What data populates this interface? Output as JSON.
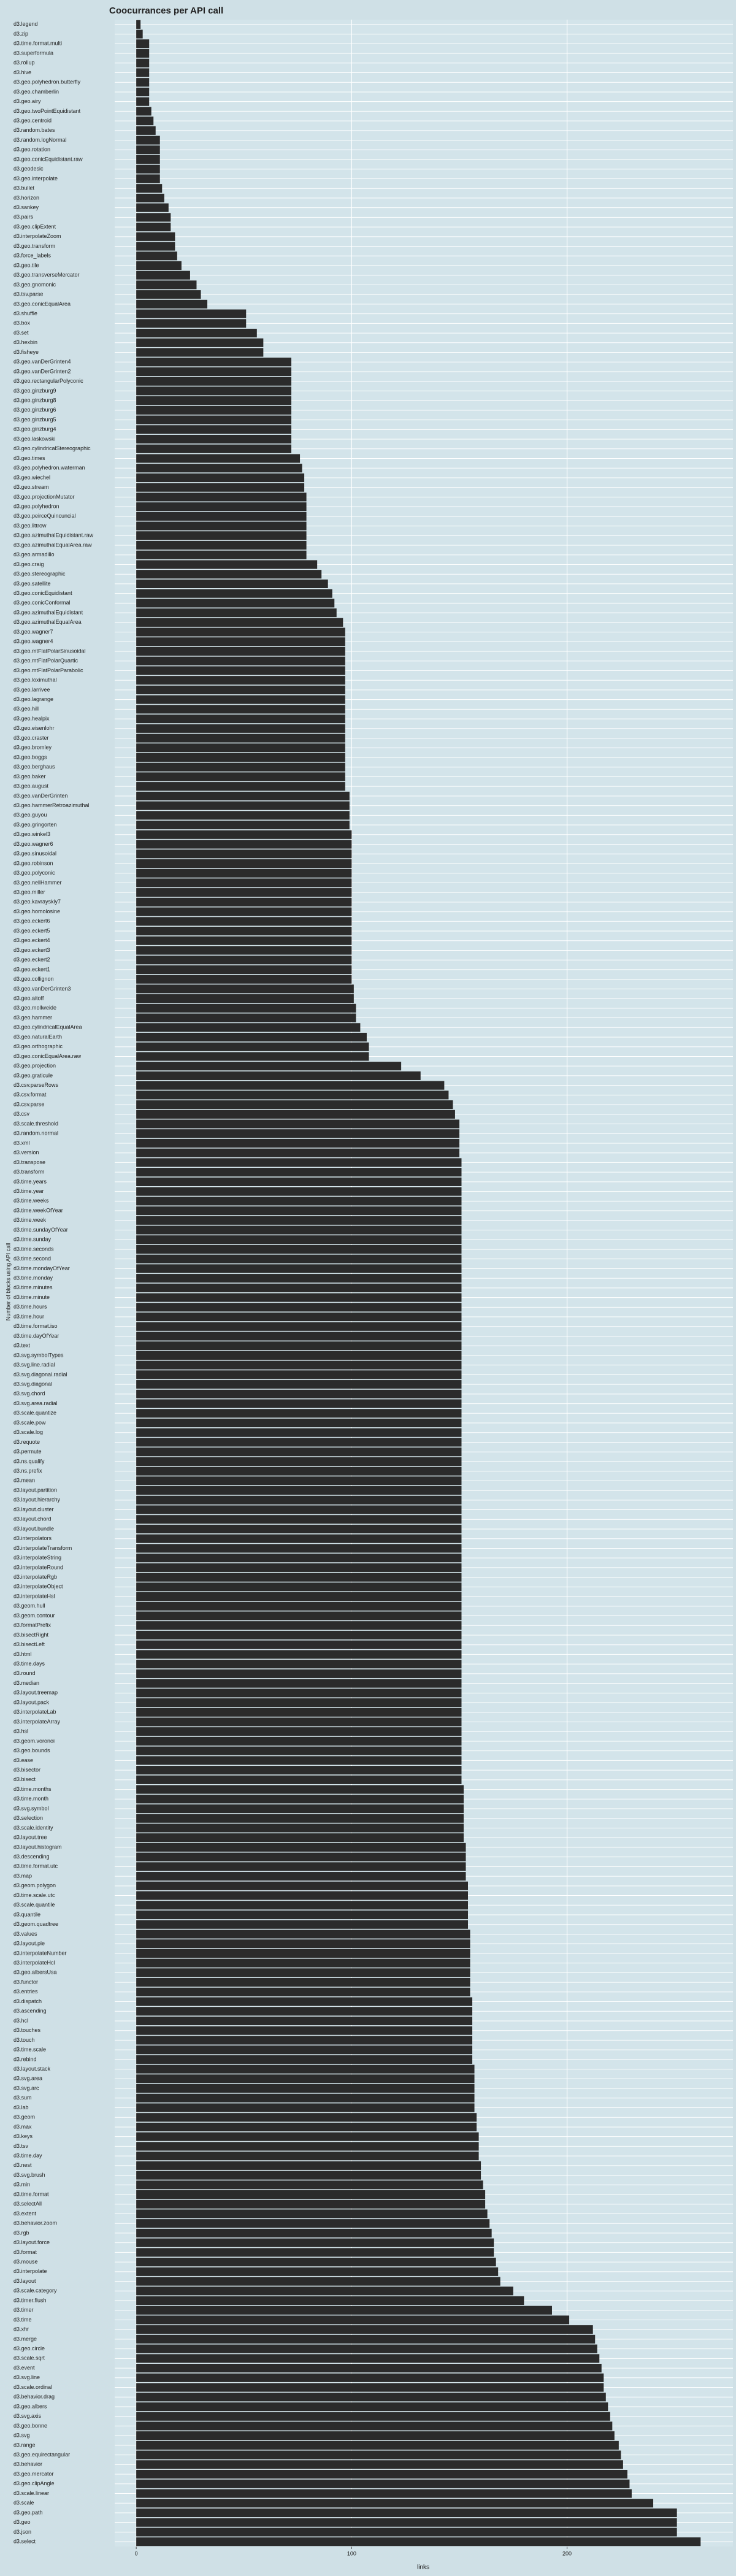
{
  "chart_data": {
    "type": "barh",
    "title": "Coocurrances per API call",
    "xlabel": "links",
    "ylabel": "Number of blocks using API call",
    "color": "#2b2b2b",
    "grid": true,
    "xlim": [
      -10,
      277
    ],
    "xticks": [
      0,
      100,
      200
    ],
    "categories": [
      "d3.legend",
      "d3.zip",
      "d3.time.format.multi",
      "d3.superformula",
      "d3.rollup",
      "d3.hive",
      "d3.geo.polyhedron.butterfly",
      "d3.geo.chamberlin",
      "d3.geo.airy",
      "d3.geo.twoPointEquidistant",
      "d3.geo.centroid",
      "d3.random.bates",
      "d3.random.logNormal",
      "d3.geo.rotation",
      "d3.geo.conicEquidistant.raw",
      "d3.geodesic",
      "d3.geo.interpolate",
      "d3.bullet",
      "d3.horizon",
      "d3.sankey",
      "d3.pairs",
      "d3.geo.clipExtent",
      "d3.interpolateZoom",
      "d3.geo.transform",
      "d3.force_labels",
      "d3.geo.tile",
      "d3.geo.transverseMercator",
      "d3.geo.gnomonic",
      "d3.tsv.parse",
      "d3.geo.conicEqualArea",
      "d3.shuffle",
      "d3.box",
      "d3.set",
      "d3.hexbin",
      "d3.fisheye",
      "d3.geo.vanDerGrinten4",
      "d3.geo.vanDerGrinten2",
      "d3.geo.rectangularPolyconic",
      "d3.geo.ginzburg9",
      "d3.geo.ginzburg8",
      "d3.geo.ginzburg6",
      "d3.geo.ginzburg5",
      "d3.geo.ginzburg4",
      "d3.geo.laskowski",
      "d3.geo.cylindricalStereographic",
      "d3.geo.times",
      "d3.geo.polyhedron.waterman",
      "d3.geo.wiechel",
      "d3.geo.stream",
      "d3.geo.projectionMutator",
      "d3.geo.polyhedron",
      "d3.geo.peirceQuincuncial",
      "d3.geo.littrow",
      "d3.geo.azimuthalEquidistant.raw",
      "d3.geo.azimuthalEqualArea.raw",
      "d3.geo.armadillo",
      "d3.geo.craig",
      "d3.geo.stereographic",
      "d3.geo.satellite",
      "d3.geo.conicEquidistant",
      "d3.geo.conicConformal",
      "d3.geo.azimuthalEquidistant",
      "d3.geo.azimuthalEqualArea",
      "d3.geo.wagner7",
      "d3.geo.wagner4",
      "d3.geo.mtFlatPolarSinusoidal",
      "d3.geo.mtFlatPolarQuartic",
      "d3.geo.mtFlatPolarParabolic",
      "d3.geo.loximuthal",
      "d3.geo.larrivee",
      "d3.geo.lagrange",
      "d3.geo.hill",
      "d3.geo.healpix",
      "d3.geo.eisenlohr",
      "d3.geo.craster",
      "d3.geo.bromley",
      "d3.geo.boggs",
      "d3.geo.berghaus",
      "d3.geo.baker",
      "d3.geo.august",
      "d3.geo.vanDerGrinten",
      "d3.geo.hammerRetroazimuthal",
      "d3.geo.guyou",
      "d3.geo.gringorten",
      "d3.geo.winkel3",
      "d3.geo.wagner6",
      "d3.geo.sinusoidal",
      "d3.geo.robinson",
      "d3.geo.polyconic",
      "d3.geo.nellHammer",
      "d3.geo.miller",
      "d3.geo.kavrayskiy7",
      "d3.geo.homolosine",
      "d3.geo.eckert6",
      "d3.geo.eckert5",
      "d3.geo.eckert4",
      "d3.geo.eckert3",
      "d3.geo.eckert2",
      "d3.geo.eckert1",
      "d3.geo.collignon",
      "d3.geo.vanDerGrinten3",
      "d3.geo.aitoff",
      "d3.geo.mollweide",
      "d3.geo.hammer",
      "d3.geo.cylindricalEqualArea",
      "d3.geo.naturalEarth",
      "d3.geo.orthographic",
      "d3.geo.conicEqualArea.raw",
      "d3.geo.projection",
      "d3.geo.graticule",
      "d3.csv.parseRows",
      "d3.csv.format",
      "d3.csv.parse",
      "d3.csv",
      "d3.scale.threshold",
      "d3.random.normal",
      "d3.xml",
      "d3.version",
      "d3.transpose",
      "d3.transform",
      "d3.time.years",
      "d3.time.year",
      "d3.time.weeks",
      "d3.time.weekOfYear",
      "d3.time.week",
      "d3.time.sundayOfYear",
      "d3.time.sunday",
      "d3.time.seconds",
      "d3.time.second",
      "d3.time.mondayOfYear",
      "d3.time.monday",
      "d3.time.minutes",
      "d3.time.minute",
      "d3.time.hours",
      "d3.time.hour",
      "d3.time.format.iso",
      "d3.time.dayOfYear",
      "d3.text",
      "d3.svg.symbolTypes",
      "d3.svg.line.radial",
      "d3.svg.diagonal.radial",
      "d3.svg.diagonal",
      "d3.svg.chord",
      "d3.svg.area.radial",
      "d3.scale.quantize",
      "d3.scale.pow",
      "d3.scale.log",
      "d3.requote",
      "d3.permute",
      "d3.ns.qualify",
      "d3.ns.prefix",
      "d3.mean",
      "d3.layout.partition",
      "d3.layout.hierarchy",
      "d3.layout.cluster",
      "d3.layout.chord",
      "d3.layout.bundle",
      "d3.interpolators",
      "d3.interpolateTransform",
      "d3.interpolateString",
      "d3.interpolateRound",
      "d3.interpolateRgb",
      "d3.interpolateObject",
      "d3.interpolateHsl",
      "d3.geom.hull",
      "d3.geom.contour",
      "d3.formatPrefix",
      "d3.bisectRight",
      "d3.bisectLeft",
      "d3.html",
      "d3.time.days",
      "d3.round",
      "d3.median",
      "d3.layout.treemap",
      "d3.layout.pack",
      "d3.interpolateLab",
      "d3.interpolateArray",
      "d3.hsl",
      "d3.geom.voronoi",
      "d3.geo.bounds",
      "d3.ease",
      "d3.bisector",
      "d3.bisect",
      "d3.time.months",
      "d3.time.month",
      "d3.svg.symbol",
      "d3.selection",
      "d3.scale.identity",
      "d3.layout.tree",
      "d3.layout.histogram",
      "d3.descending",
      "d3.time.format.utc",
      "d3.map",
      "d3.geom.polygon",
      "d3.time.scale.utc",
      "d3.scale.quantile",
      "d3.quantile",
      "d3.geom.quadtree",
      "d3.values",
      "d3.layout.pie",
      "d3.interpolateNumber",
      "d3.interpolateHcl",
      "d3.geo.albersUsa",
      "d3.functor",
      "d3.entries",
      "d3.dispatch",
      "d3.ascending",
      "d3.hcl",
      "d3.touches",
      "d3.touch",
      "d3.time.scale",
      "d3.rebind",
      "d3.layout.stack",
      "d3.svg.area",
      "d3.svg.arc",
      "d3.sum",
      "d3.lab",
      "d3.geom",
      "d3.max",
      "d3.keys",
      "d3.tsv",
      "d3.time.day",
      "d3.nest",
      "d3.svg.brush",
      "d3.min",
      "d3.time.format",
      "d3.selectAll",
      "d3.extent",
      "d3.behavior.zoom",
      "d3.rgb",
      "d3.layout.force",
      "d3.format",
      "d3.mouse",
      "d3.interpolate",
      "d3.layout",
      "d3.scale.category",
      "d3.timer.flush",
      "d3.timer",
      "d3.time",
      "d3.xhr",
      "d3.merge",
      "d3.geo.circle",
      "d3.scale.sqrt",
      "d3.event",
      "d3.svg.line",
      "d3.scale.ordinal",
      "d3.behavior.drag",
      "d3.geo.albers",
      "d3.svg.axis",
      "d3.geo.bonne",
      "d3.svg",
      "d3.range",
      "d3.geo.equirectangular",
      "d3.behavior",
      "d3.geo.mercator",
      "d3.geo.clipAngle",
      "d3.scale.linear",
      "d3.scale",
      "d3.geo.path",
      "d3.geo",
      "d3.json",
      "d3.select"
    ],
    "values": [
      2,
      3,
      6,
      6,
      6,
      6,
      6,
      6,
      6,
      7,
      8,
      9,
      11,
      11,
      11,
      11,
      11,
      12,
      13,
      15,
      16,
      16,
      18,
      18,
      19,
      21,
      25,
      28,
      30,
      33,
      51,
      51,
      56,
      59,
      59,
      72,
      72,
      72,
      72,
      72,
      72,
      72,
      72,
      72,
      72,
      76,
      77,
      78,
      78,
      79,
      79,
      79,
      79,
      79,
      79,
      79,
      84,
      86,
      89,
      91,
      92,
      93,
      96,
      97,
      97,
      97,
      97,
      97,
      97,
      97,
      97,
      97,
      97,
      97,
      97,
      97,
      97,
      97,
      97,
      97,
      99,
      99,
      99,
      99,
      100,
      100,
      100,
      100,
      100,
      100,
      100,
      100,
      100,
      100,
      100,
      100,
      100,
      100,
      100,
      100,
      101,
      101,
      102,
      102,
      104,
      107,
      108,
      108,
      123,
      132,
      143,
      145,
      147,
      148,
      150,
      150,
      150,
      150,
      151,
      151,
      151,
      151,
      151,
      151,
      151,
      151,
      151,
      151,
      151,
      151,
      151,
      151,
      151,
      151,
      151,
      151,
      151,
      151,
      151,
      151,
      151,
      151,
      151,
      151,
      151,
      151,
      151,
      151,
      151,
      151,
      151,
      151,
      151,
      151,
      151,
      151,
      151,
      151,
      151,
      151,
      151,
      151,
      151,
      151,
      151,
      151,
      151,
      151,
      151,
      151,
      151,
      151,
      151,
      151,
      151,
      151,
      151,
      151,
      151,
      151,
      151,
      151,
      151,
      152,
      152,
      152,
      152,
      152,
      152,
      153,
      153,
      153,
      153,
      154,
      154,
      154,
      154,
      154,
      155,
      155,
      155,
      155,
      155,
      155,
      155,
      156,
      156,
      156,
      156,
      156,
      156,
      156,
      157,
      157,
      157,
      157,
      157,
      158,
      158,
      159,
      159,
      159,
      160,
      160,
      161,
      162,
      162,
      163,
      164,
      165,
      166,
      166,
      167,
      168,
      169,
      175,
      180,
      193,
      201,
      212,
      213,
      214,
      215,
      216,
      217,
      217,
      218,
      219,
      220,
      221,
      222,
      224,
      225,
      226,
      228,
      229,
      230,
      240,
      251,
      251,
      251,
      262
    ]
  }
}
